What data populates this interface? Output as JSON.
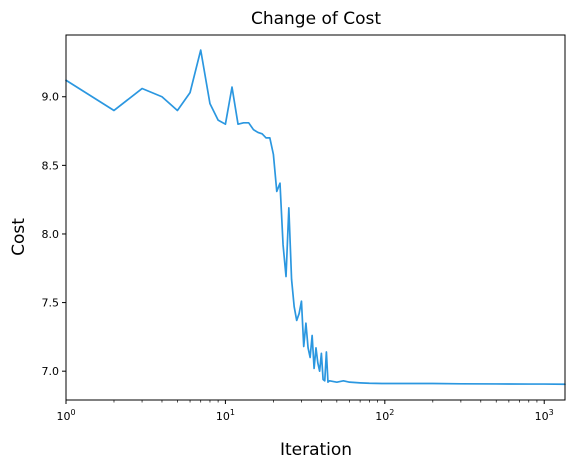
{
  "chart_data": {
    "type": "line",
    "title": "Change of Cost",
    "xlabel": "Iteration",
    "ylabel": "Cost",
    "xscale": "log",
    "xlim": [
      1,
      1350
    ],
    "ylim": [
      6.79,
      9.45
    ],
    "x_ticks": [
      {
        "value": 1,
        "base": "10",
        "exp": "0"
      },
      {
        "value": 10,
        "base": "10",
        "exp": "1"
      },
      {
        "value": 100,
        "base": "10",
        "exp": "2"
      },
      {
        "value": 1000,
        "base": "10",
        "exp": "3"
      }
    ],
    "y_ticks": [
      {
        "value": 7.0,
        "label": "7.0"
      },
      {
        "value": 7.5,
        "label": "7.5"
      },
      {
        "value": 8.0,
        "label": "8.0"
      },
      {
        "value": 8.5,
        "label": "8.5"
      },
      {
        "value": 9.0,
        "label": "9.0"
      }
    ],
    "grid": false,
    "legend": "none",
    "line_color": "#2b97e0",
    "series": [
      {
        "x": [
          1,
          2,
          3,
          4,
          5,
          6,
          7,
          8,
          9,
          10,
          11,
          12,
          13,
          14,
          15,
          16,
          17,
          18,
          19,
          20,
          21,
          22,
          23,
          24,
          25,
          26,
          27,
          28,
          29,
          30,
          31,
          32,
          33,
          34,
          35,
          36,
          37,
          38,
          39,
          40,
          41,
          42,
          43,
          44,
          45,
          50,
          55,
          60,
          70,
          80,
          100,
          150,
          200,
          300,
          500,
          800,
          1000,
          1350
        ],
        "y": [
          9.12,
          8.9,
          9.06,
          9.0,
          8.9,
          9.03,
          9.34,
          8.95,
          8.83,
          8.8,
          9.07,
          8.8,
          8.81,
          8.81,
          8.76,
          8.74,
          8.73,
          8.7,
          8.7,
          8.58,
          8.31,
          8.37,
          7.92,
          7.69,
          8.19,
          7.67,
          7.47,
          7.37,
          7.42,
          7.51,
          7.18,
          7.35,
          7.17,
          7.1,
          7.26,
          7.02,
          7.17,
          7.06,
          7.0,
          7.13,
          6.94,
          6.93,
          7.14,
          6.92,
          6.93,
          6.92,
          6.93,
          6.92,
          6.915,
          6.912,
          6.91,
          6.91,
          6.91,
          6.908,
          6.907,
          6.906,
          6.906,
          6.905
        ]
      }
    ]
  }
}
